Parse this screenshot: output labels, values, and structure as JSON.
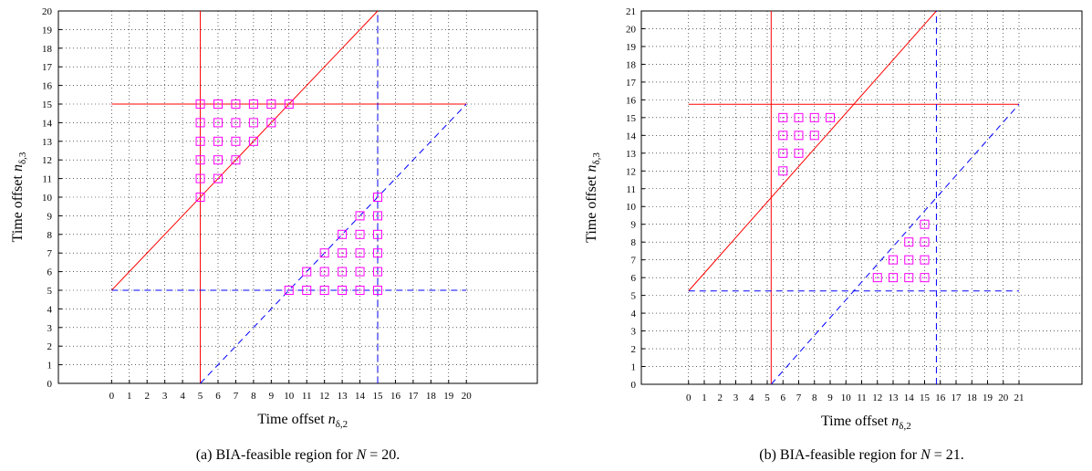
{
  "chart_data": [
    {
      "type": "scatter",
      "caption": "(a) BIA-feasible region for N = 20.",
      "xlabel": "Time offset n_{δ,2}",
      "ylabel": "Time offset n_{δ,3}",
      "xlim": [
        -3,
        24
      ],
      "ylim": [
        0,
        20
      ],
      "xticks": [
        "0",
        "1",
        "2",
        "3",
        "4",
        "5",
        "6",
        "7",
        "8",
        "9",
        "10",
        "11",
        "12",
        "13",
        "14",
        "15",
        "16",
        "17",
        "18",
        "19",
        "20"
      ],
      "yticks": [
        "0",
        "1",
        "2",
        "3",
        "4",
        "5",
        "6",
        "7",
        "8",
        "9",
        "10",
        "11",
        "12",
        "13",
        "14",
        "15",
        "16",
        "17",
        "18",
        "19",
        "20"
      ],
      "grid": true,
      "colors": {
        "solid": "#ff0000",
        "dashed": "#0000ff",
        "markers": "#ff00ff"
      },
      "lines": [
        {
          "style": "solid",
          "x": [
            5,
            5
          ],
          "y": [
            0,
            20
          ]
        },
        {
          "style": "solid",
          "x": [
            0,
            20
          ],
          "y": [
            15,
            15
          ]
        },
        {
          "style": "solid",
          "x": [
            0,
            15
          ],
          "y": [
            5,
            20
          ]
        },
        {
          "style": "dashed",
          "x": [
            15,
            15
          ],
          "y": [
            0,
            20
          ]
        },
        {
          "style": "dashed",
          "x": [
            0,
            20
          ],
          "y": [
            5,
            5
          ]
        },
        {
          "style": "dashed",
          "x": [
            5,
            20
          ],
          "y": [
            0,
            15
          ]
        }
      ],
      "points": [
        [
          5,
          10
        ],
        [
          5,
          11
        ],
        [
          5,
          12
        ],
        [
          5,
          13
        ],
        [
          5,
          14
        ],
        [
          5,
          15
        ],
        [
          6,
          11
        ],
        [
          6,
          12
        ],
        [
          6,
          13
        ],
        [
          6,
          14
        ],
        [
          6,
          15
        ],
        [
          7,
          12
        ],
        [
          7,
          13
        ],
        [
          7,
          14
        ],
        [
          7,
          15
        ],
        [
          8,
          13
        ],
        [
          8,
          14
        ],
        [
          8,
          15
        ],
        [
          9,
          14
        ],
        [
          9,
          15
        ],
        [
          10,
          15
        ],
        [
          10,
          5
        ],
        [
          11,
          5
        ],
        [
          11,
          6
        ],
        [
          12,
          5
        ],
        [
          12,
          6
        ],
        [
          12,
          7
        ],
        [
          13,
          5
        ],
        [
          13,
          6
        ],
        [
          13,
          7
        ],
        [
          13,
          8
        ],
        [
          14,
          5
        ],
        [
          14,
          6
        ],
        [
          14,
          7
        ],
        [
          14,
          8
        ],
        [
          14,
          9
        ],
        [
          15,
          5
        ],
        [
          15,
          6
        ],
        [
          15,
          7
        ],
        [
          15,
          8
        ],
        [
          15,
          9
        ],
        [
          15,
          10
        ]
      ]
    },
    {
      "type": "scatter",
      "caption": "(b) BIA-feasible region for N = 21.",
      "xlabel": "Time offset n_{δ,2}",
      "ylabel": "Time offset n_{δ,3}",
      "xlim": [
        -3,
        25
      ],
      "ylim": [
        0,
        21
      ],
      "xticks": [
        "0",
        "1",
        "2",
        "3",
        "4",
        "5",
        "6",
        "7",
        "8",
        "9",
        "10",
        "11",
        "12",
        "13",
        "14",
        "15",
        "16",
        "17",
        "18",
        "19",
        "20",
        "21"
      ],
      "yticks": [
        "0",
        "1",
        "2",
        "3",
        "4",
        "5",
        "6",
        "7",
        "8",
        "9",
        "10",
        "11",
        "12",
        "13",
        "14",
        "15",
        "16",
        "17",
        "18",
        "19",
        "20",
        "21"
      ],
      "grid": true,
      "colors": {
        "solid": "#ff0000",
        "dashed": "#0000ff",
        "markers": "#ff00ff"
      },
      "lines": [
        {
          "style": "solid",
          "x": [
            5.25,
            5.25
          ],
          "y": [
            0,
            21
          ]
        },
        {
          "style": "solid",
          "x": [
            0,
            21
          ],
          "y": [
            15.75,
            15.75
          ]
        },
        {
          "style": "solid",
          "x": [
            0,
            15.75
          ],
          "y": [
            5.25,
            21
          ]
        },
        {
          "style": "dashed",
          "x": [
            15.75,
            15.75
          ],
          "y": [
            0,
            21
          ]
        },
        {
          "style": "dashed",
          "x": [
            0,
            21
          ],
          "y": [
            5.25,
            5.25
          ]
        },
        {
          "style": "dashed",
          "x": [
            5.25,
            21
          ],
          "y": [
            0,
            15.75
          ]
        }
      ],
      "points": [
        [
          6,
          12
        ],
        [
          6,
          13
        ],
        [
          6,
          14
        ],
        [
          6,
          15
        ],
        [
          7,
          13
        ],
        [
          7,
          14
        ],
        [
          7,
          15
        ],
        [
          8,
          14
        ],
        [
          8,
          15
        ],
        [
          9,
          15
        ],
        [
          12,
          6
        ],
        [
          13,
          6
        ],
        [
          13,
          7
        ],
        [
          14,
          6
        ],
        [
          14,
          7
        ],
        [
          14,
          8
        ],
        [
          15,
          6
        ],
        [
          15,
          7
        ],
        [
          15,
          8
        ],
        [
          15,
          9
        ]
      ]
    }
  ]
}
